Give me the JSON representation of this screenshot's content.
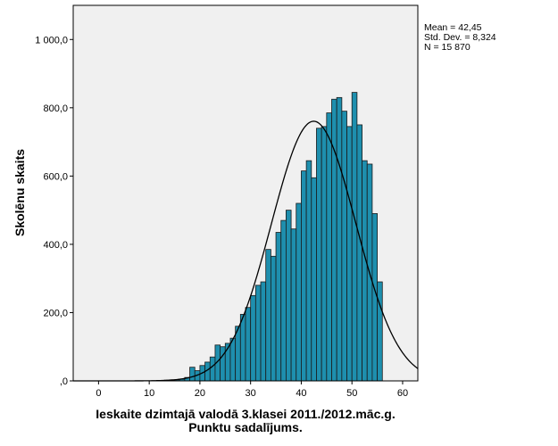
{
  "chart_data": {
    "type": "bar",
    "subtype": "histogram",
    "ylabel": "Skolēnu skaits",
    "xlabel_lines": [
      "Ieskaite dzimtajā valodā 3.klasei 2011./2012.māc.g.",
      "Punktu sadalījums."
    ],
    "x_ticks": [
      "0",
      "10",
      "20",
      "30",
      "40",
      "50",
      "60"
    ],
    "y_ticks": [
      ",0",
      "200,0",
      "400,0",
      "600,0",
      "800,0",
      "1 000,0"
    ],
    "xlim": [
      -5,
      63
    ],
    "ylim": [
      0,
      1100
    ],
    "bin_start": 0,
    "bin_width": 1,
    "values": [
      0,
      0,
      0,
      0,
      0,
      0,
      0,
      0,
      0,
      0,
      0,
      0,
      0,
      2,
      3,
      3,
      5,
      10,
      40,
      30,
      45,
      55,
      70,
      105,
      100,
      110,
      125,
      160,
      195,
      215,
      250,
      280,
      290,
      385,
      365,
      435,
      470,
      500,
      445,
      520,
      615,
      645,
      595,
      740,
      745,
      785,
      825,
      830,
      790,
      745,
      845,
      750,
      645,
      635,
      490,
      290
    ],
    "normal_curve": {
      "mean": 42.45,
      "std_dev": 8.324,
      "n": 15870
    },
    "stats_box": [
      "Mean = 42,45",
      "Std. Dev. = 8,324",
      "N = 15 870"
    ],
    "grid": false,
    "colors": {
      "bar_fill": "#1e8fae",
      "bar_stroke": "#1a1a1a",
      "plot_background": "#f0f0f0",
      "curve": "#000000"
    }
  }
}
